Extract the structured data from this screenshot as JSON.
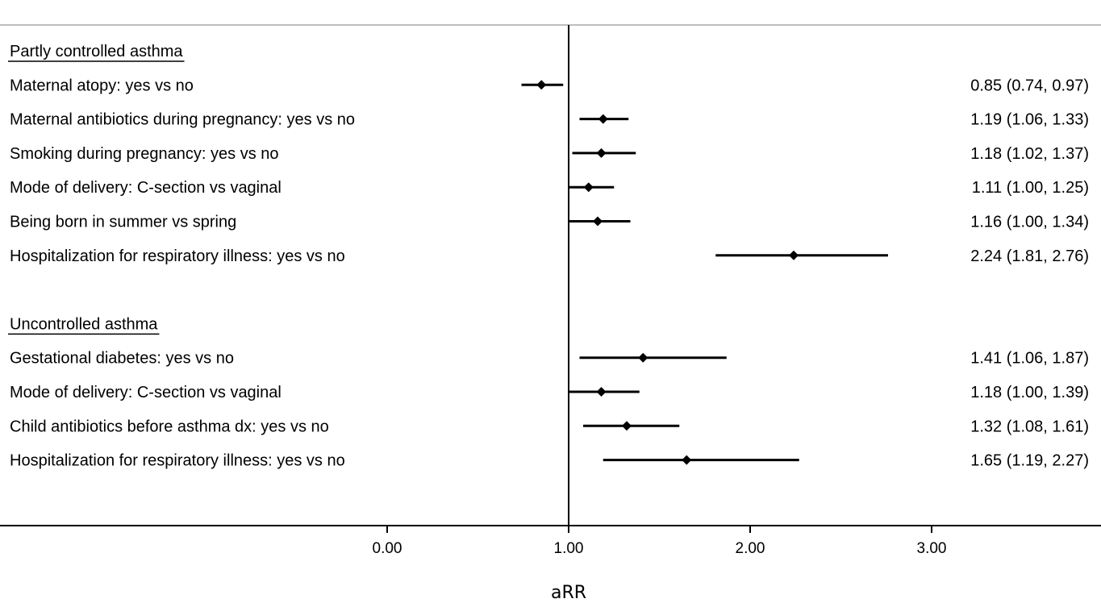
{
  "chart_data": {
    "type": "forest",
    "xlabel": "aRR",
    "xlim": [
      -1.0,
      3.85
    ],
    "xticks": [
      0,
      1,
      2,
      3
    ],
    "xtick_labels": [
      "0.00",
      "1.00",
      "2.00",
      "3.00"
    ],
    "reference_line": 1.0,
    "groups": [
      {
        "title": "Partly controlled asthma",
        "rows": [
          {
            "label": "Maternal atopy: yes vs no",
            "estimate": 0.85,
            "lower": 0.74,
            "upper": 0.97,
            "text": "0.85 (0.74, 0.97)"
          },
          {
            "label": "Maternal antibiotics during pregnancy: yes vs no",
            "estimate": 1.19,
            "lower": 1.06,
            "upper": 1.33,
            "text": "1.19 (1.06, 1.33)"
          },
          {
            "label": "Smoking during pregnancy: yes vs no",
            "estimate": 1.18,
            "lower": 1.02,
            "upper": 1.37,
            "text": "1.18 (1.02, 1.37)"
          },
          {
            "label": "Mode of delivery: C-section vs vaginal",
            "estimate": 1.11,
            "lower": 1.0,
            "upper": 1.25,
            "text": "1.11 (1.00, 1.25)"
          },
          {
            "label": "Being born in summer vs spring",
            "estimate": 1.16,
            "lower": 1.0,
            "upper": 1.34,
            "text": "1.16 (1.00, 1.34)"
          },
          {
            "label": "Hospitalization for respiratory illness: yes vs no",
            "estimate": 2.24,
            "lower": 1.81,
            "upper": 2.76,
            "text": "2.24 (1.81, 2.76)"
          }
        ]
      },
      {
        "title": "Uncontrolled asthma",
        "rows": [
          {
            "label": "Gestational diabetes: yes vs no",
            "estimate": 1.41,
            "lower": 1.06,
            "upper": 1.87,
            "text": "1.41 (1.06, 1.87)"
          },
          {
            "label": "Mode of delivery: C-section vs vaginal",
            "estimate": 1.18,
            "lower": 1.0,
            "upper": 1.39,
            "text": "1.18 (1.00, 1.39)"
          },
          {
            "label": "Child antibiotics before asthma dx: yes vs no",
            "estimate": 1.32,
            "lower": 1.08,
            "upper": 1.61,
            "text": "1.32 (1.08, 1.61)"
          },
          {
            "label": "Hospitalization for respiratory illness: yes vs no",
            "estimate": 1.65,
            "lower": 1.19,
            "upper": 2.27,
            "text": "1.65 (1.19, 2.27)"
          }
        ]
      }
    ]
  }
}
